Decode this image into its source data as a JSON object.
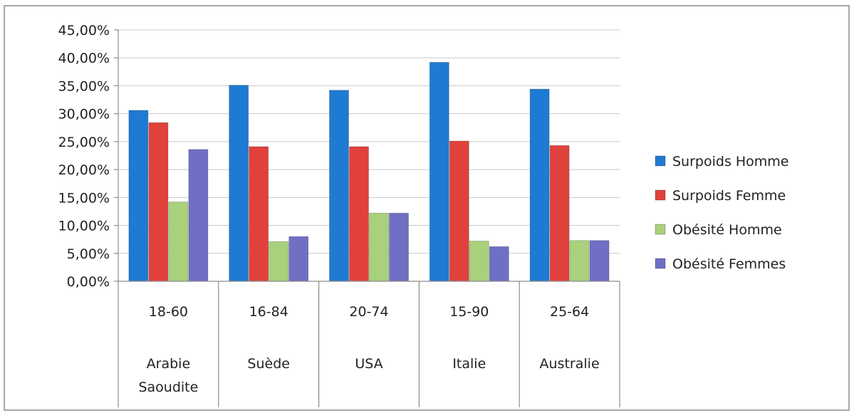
{
  "chart_data": {
    "type": "bar",
    "title": "",
    "xlabel": "",
    "ylabel": "",
    "ylim": [
      0,
      0.45
    ],
    "yticks": [
      0,
      0.05,
      0.1,
      0.15,
      0.2,
      0.25,
      0.3,
      0.35,
      0.4,
      0.45
    ],
    "ytick_labels": [
      "0,00%",
      "5,00%",
      "10,00%",
      "15,00%",
      "20,00%",
      "25,00%",
      "30,00%",
      "35,00%",
      "40,00%",
      "45,00%"
    ],
    "grid": true,
    "legend_position": "right",
    "categories": [
      {
        "age": "18-60",
        "country_line1": "Arabie",
        "country_line2": "Saoudite"
      },
      {
        "age": "16-84",
        "country_line1": "Suède",
        "country_line2": ""
      },
      {
        "age": "20-74",
        "country_line1": "USA",
        "country_line2": ""
      },
      {
        "age": "15-90",
        "country_line1": "Italie",
        "country_line2": ""
      },
      {
        "age": "25-64",
        "country_line1": "Australie",
        "country_line2": ""
      }
    ],
    "series": [
      {
        "name": "Surpoids Homme",
        "color": "#1f7ad3",
        "values": [
          0.306,
          0.351,
          0.342,
          0.392,
          0.344
        ]
      },
      {
        "name": "Surpoids Femme",
        "color": "#e0413c",
        "values": [
          0.284,
          0.241,
          0.241,
          0.251,
          0.243
        ]
      },
      {
        "name": "Obésité Homme",
        "color": "#a9d17c",
        "values": [
          0.142,
          0.071,
          0.122,
          0.072,
          0.073
        ]
      },
      {
        "name": "Obésité Femmes",
        "color": "#6f6fc4",
        "values": [
          0.236,
          0.08,
          0.122,
          0.062,
          0.073
        ]
      }
    ]
  }
}
